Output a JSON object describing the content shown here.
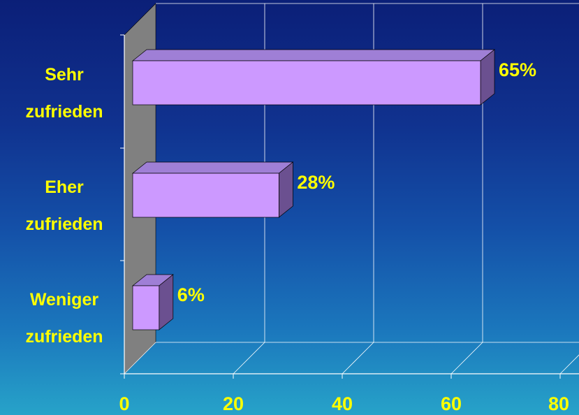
{
  "chart_data": {
    "type": "bar",
    "orientation": "horizontal",
    "style": "3d",
    "categories": [
      [
        "Sehr",
        "zufrieden"
      ],
      [
        "Eher",
        "zufrieden"
      ],
      [
        "Weniger",
        "zufrieden"
      ]
    ],
    "values": [
      65,
      28,
      6
    ],
    "data_labels": [
      "65%",
      "28%",
      "6%"
    ],
    "x_ticks": [
      "0",
      "20",
      "40",
      "60",
      "80"
    ],
    "xlim": [
      0,
      80
    ],
    "grid": true
  },
  "colors": {
    "bar_front": "#cc99ff",
    "bar_top": "#9f7fd6",
    "bar_side": "#6b5090",
    "label_text": "#ffff00",
    "grid_line": "#ffffff",
    "side_wall": "#808080"
  }
}
